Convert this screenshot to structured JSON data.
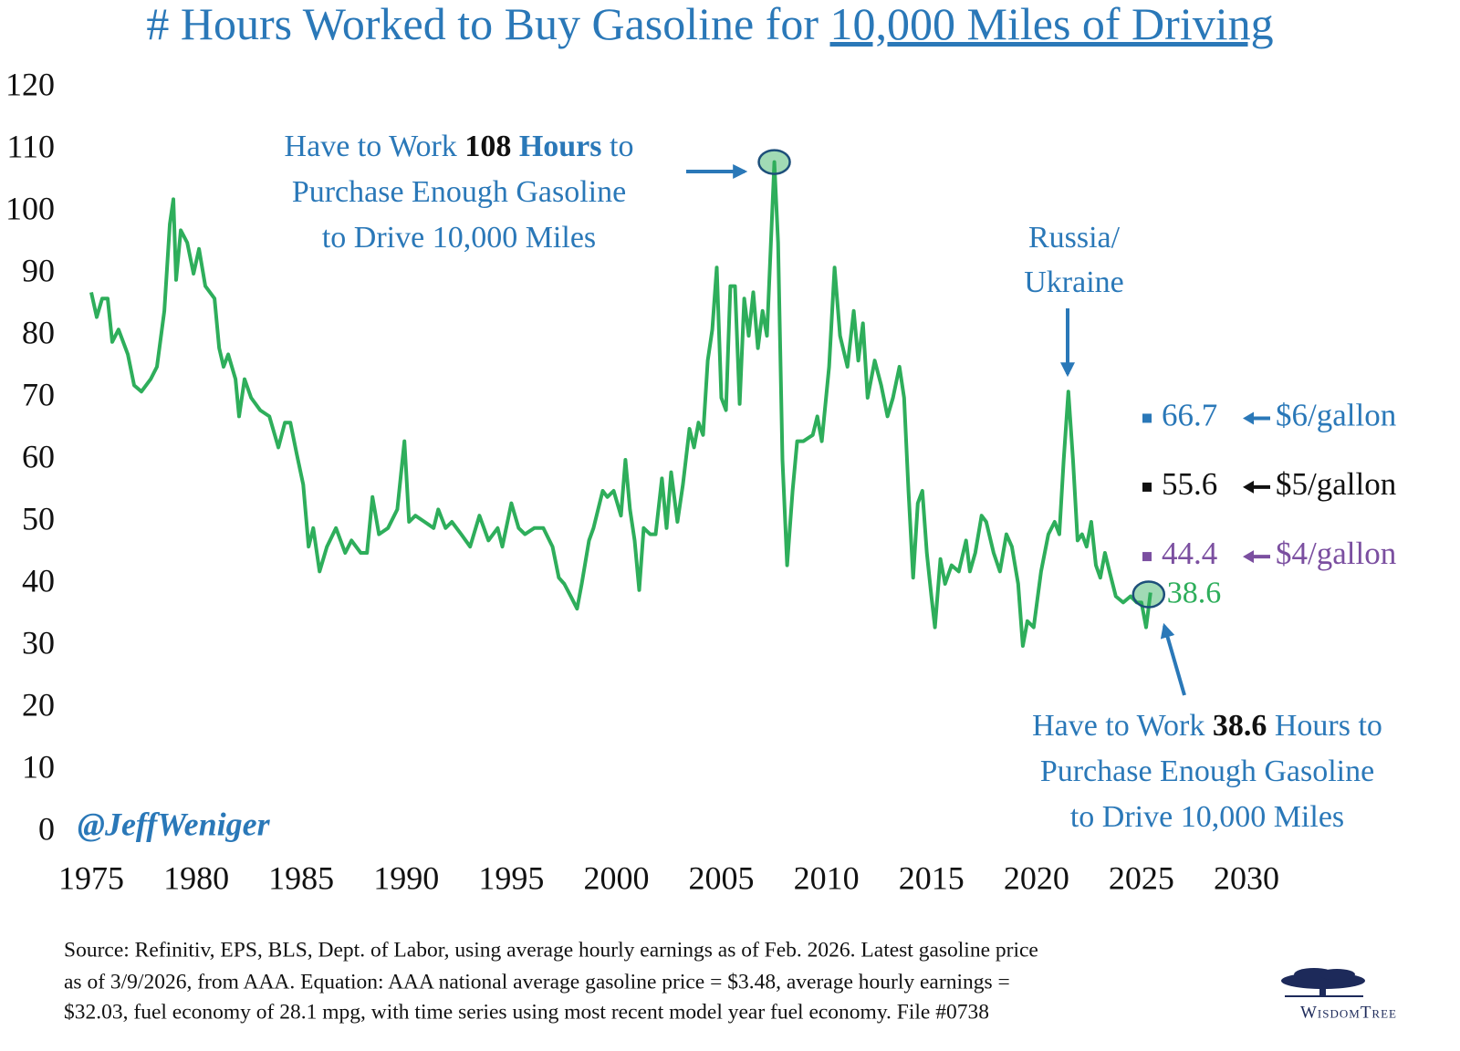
{
  "chart_data": {
    "type": "line",
    "title": [
      {
        "text": "# Hours Worked to Buy Gasoline for "
      },
      {
        "text": "10,000 Miles of Driving",
        "underline": true
      }
    ],
    "xlim": [
      1975,
      2030
    ],
    "xticks": [
      1975,
      1980,
      1985,
      1990,
      1995,
      2000,
      2005,
      2010,
      2015,
      2020,
      2025,
      2030
    ],
    "ylim": [
      0,
      120
    ],
    "yticks": [
      0,
      10,
      20,
      30,
      40,
      50,
      60,
      70,
      80,
      90,
      100,
      110,
      120
    ],
    "grid": false,
    "x": [
      1975.0,
      1975.26,
      1975.52,
      1975.78,
      1976.0,
      1976.3,
      1976.74,
      1977.04,
      1977.39,
      1977.83,
      1978.13,
      1978.48,
      1978.74,
      1978.91,
      1979.04,
      1979.26,
      1979.57,
      1979.87,
      1980.13,
      1980.43,
      1980.87,
      1981.09,
      1981.3,
      1981.52,
      1981.87,
      1982.04,
      1982.3,
      1982.61,
      1983.04,
      1983.48,
      1983.91,
      1984.22,
      1984.48,
      1984.78,
      1985.09,
      1985.35,
      1985.57,
      1985.87,
      1986.22,
      1986.65,
      1987.09,
      1987.39,
      1987.83,
      1988.13,
      1988.39,
      1988.7,
      1989.13,
      1989.57,
      1989.91,
      1990.13,
      1990.43,
      1990.87,
      1991.3,
      1991.52,
      1991.87,
      1992.17,
      1992.61,
      1993.04,
      1993.48,
      1993.91,
      1994.35,
      1994.57,
      1995.0,
      1995.35,
      1995.65,
      1996.09,
      1996.52,
      1996.96,
      1997.26,
      1997.52,
      1997.83,
      1998.13,
      1998.35,
      1998.7,
      1998.91,
      1999.35,
      1999.57,
      1999.87,
      2000.22,
      2000.43,
      2000.65,
      2000.87,
      2001.09,
      2001.3,
      2001.61,
      2001.87,
      2002.17,
      2002.39,
      2002.61,
      2002.91,
      2003.17,
      2003.48,
      2003.7,
      2003.91,
      2004.13,
      2004.35,
      2004.57,
      2004.78,
      2005.0,
      2005.22,
      2005.43,
      2005.65,
      2005.87,
      2006.09,
      2006.3,
      2006.52,
      2006.74,
      2006.96,
      2007.17,
      2007.52,
      2007.7,
      2007.91,
      2008.13,
      2008.39,
      2008.61,
      2008.91,
      2009.35,
      2009.57,
      2009.78,
      2010.13,
      2010.39,
      2010.65,
      2011.0,
      2011.3,
      2011.52,
      2011.74,
      2011.96,
      2012.3,
      2012.61,
      2012.91,
      2013.17,
      2013.48,
      2013.7,
      2013.91,
      2014.13,
      2014.35,
      2014.57,
      2014.78,
      2015.0,
      2015.17,
      2015.43,
      2015.65,
      2015.96,
      2016.3,
      2016.65,
      2016.83,
      2017.09,
      2017.39,
      2017.61,
      2017.96,
      2018.26,
      2018.57,
      2018.83,
      2019.13,
      2019.35,
      2019.57,
      2019.87,
      2020.22,
      2020.57,
      2020.87,
      2021.09,
      2021.3,
      2021.52,
      2021.74,
      2021.96,
      2022.17,
      2022.39,
      2022.61,
      2022.83,
      2023.04,
      2023.26,
      2023.48,
      2023.78,
      2024.13,
      2024.48,
      2024.78,
      2025.0,
      2025.22,
      2025.43
    ],
    "series": [
      {
        "color": "#2eae5b",
        "values": [
          87,
          83,
          86,
          86,
          79,
          81,
          77,
          72,
          71,
          73,
          75,
          84,
          98,
          102,
          89,
          97,
          95,
          90,
          94,
          88,
          86,
          78,
          75,
          77,
          73,
          67,
          73,
          70,
          68,
          67,
          62,
          66,
          66,
          61,
          56,
          46,
          49,
          42,
          46,
          49,
          45,
          47,
          45,
          45,
          54,
          48,
          49,
          52,
          63,
          50,
          51,
          50,
          49,
          52,
          49,
          50,
          48,
          46,
          51,
          47,
          49,
          46,
          53,
          49,
          48,
          49,
          49,
          46,
          41,
          40,
          38,
          36,
          40,
          47,
          49,
          55,
          54,
          55,
          51,
          60,
          52,
          47,
          39,
          49,
          48,
          48,
          57,
          49,
          58,
          50,
          56,
          65,
          62,
          66,
          64,
          76,
          81,
          91,
          70,
          68,
          88,
          88,
          69,
          86,
          80,
          87,
          78,
          84,
          80,
          108,
          95,
          60,
          43,
          55,
          63,
          63,
          64,
          67,
          63,
          75,
          91,
          80,
          75,
          84,
          76,
          82,
          70,
          76,
          72,
          67,
          70,
          75,
          70,
          55,
          41,
          53,
          55,
          45,
          38,
          33,
          44,
          40,
          43,
          42,
          47,
          42,
          45,
          51,
          50,
          45,
          42,
          48,
          46,
          40,
          30,
          34,
          33,
          42,
          48,
          50,
          48,
          60,
          71,
          60,
          47,
          48,
          46,
          50,
          43,
          41,
          45,
          42,
          38,
          37,
          38,
          37,
          37,
          33,
          38.6
        ]
      }
    ],
    "price_levels": [
      {
        "value": 66.7,
        "label": "$6/gallon",
        "color": "#2a78b8"
      },
      {
        "value": 55.6,
        "label": "$5/gallon",
        "color": "#111111"
      },
      {
        "value": 44.4,
        "label": "$4/gallon",
        "color": "#7b4fa0"
      }
    ],
    "annotations": [
      {
        "lines": [
          [
            {
              "text": "Have to Work "
            },
            {
              "text": "108",
              "bold": true,
              "color": "#111111"
            },
            {
              "text": " "
            },
            {
              "text": "Hours",
              "bold": true
            },
            {
              "text": " to"
            }
          ],
          [
            {
              "text": "Purchase Enough Gasoline"
            }
          ],
          [
            {
              "text": "to Drive 10,000 Miles"
            }
          ]
        ]
      },
      {
        "lines": [
          [
            {
              "text": "Russia/"
            }
          ],
          [
            {
              "text": "Ukraine"
            }
          ]
        ]
      },
      {
        "lines": [
          [
            {
              "text": "Have to Work "
            },
            {
              "text": "38.6",
              "bold": true,
              "color": "#111111"
            },
            {
              "text": " Hours to"
            }
          ],
          [
            {
              "text": "Purchase Enough Gasoline"
            }
          ],
          [
            {
              "text": "to Drive 10,000 Miles"
            }
          ]
        ]
      }
    ],
    "handle": "@JeffWeniger",
    "source": [
      "Source: Refinitiv, EPS, BLS, Dept. of Labor, using average hourly earnings as of Feb. 2026. Latest gasoline price",
      "as of 3/9/2026, from AAA. Equation: AAA national average gasoline price = $3.48, average hourly earnings =",
      "$32.03, fuel economy of 28.1 mpg, with time series using most recent model year fuel economy. File #0738"
    ],
    "logo": "WisdomTree"
  }
}
